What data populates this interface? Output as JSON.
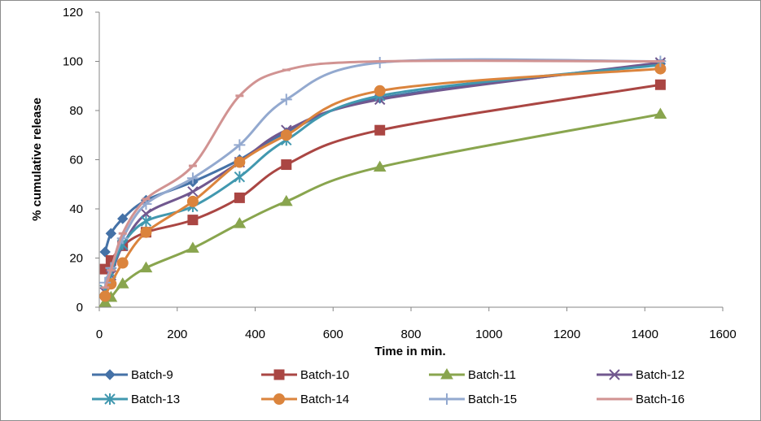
{
  "chart_data": {
    "type": "line",
    "title": "",
    "xlabel": "Time in min.",
    "ylabel": "% cumulative release",
    "xlim": [
      0,
      1600
    ],
    "ylim": [
      0,
      120
    ],
    "xticks": [
      0,
      200,
      400,
      600,
      800,
      1000,
      1200,
      1400,
      1600
    ],
    "yticks": [
      0,
      20,
      40,
      60,
      80,
      100,
      120
    ],
    "grid": false,
    "legend_position": "bottom",
    "series": [
      {
        "name": "Batch-9",
        "color": "#4572a7",
        "marker": "diamond",
        "x": [
          15,
          30,
          60,
          120,
          240,
          360,
          480,
          720,
          1440
        ],
        "y": [
          22.5,
          30,
          36,
          43.5,
          51,
          60,
          71,
          85,
          99
        ]
      },
      {
        "name": "Batch-10",
        "color": "#aa4643",
        "marker": "square",
        "x": [
          15,
          30,
          60,
          120,
          240,
          360,
          480,
          720,
          1440
        ],
        "y": [
          15.5,
          19,
          25,
          30.5,
          35.5,
          44.5,
          58,
          72,
          90.5
        ]
      },
      {
        "name": "Batch-11",
        "color": "#89a54e",
        "marker": "triangle",
        "x": [
          15,
          30,
          60,
          120,
          240,
          360,
          480,
          720,
          1440
        ],
        "y": [
          2,
          4,
          9.5,
          16,
          24,
          34,
          43,
          57,
          78.5
        ]
      },
      {
        "name": "Batch-12",
        "color": "#71588f",
        "marker": "x",
        "x": [
          15,
          30,
          60,
          120,
          240,
          360,
          480,
          720,
          1440
        ],
        "y": [
          6,
          13,
          25,
          38,
          47,
          59,
          72,
          84.5,
          99.5
        ]
      },
      {
        "name": "Batch-13",
        "color": "#4198af",
        "marker": "asterisk",
        "x": [
          15,
          30,
          60,
          120,
          240,
          360,
          480,
          720,
          1440
        ],
        "y": [
          7,
          14,
          25.5,
          35,
          41,
          53,
          68,
          86,
          98.5
        ]
      },
      {
        "name": "Batch-14",
        "color": "#db843d",
        "marker": "circle",
        "x": [
          15,
          30,
          60,
          120,
          240,
          360,
          480,
          720,
          1440
        ],
        "y": [
          4.5,
          9.5,
          18,
          30.5,
          43,
          59,
          70,
          88,
          97
        ]
      },
      {
        "name": "Batch-15",
        "color": "#93a9cf",
        "marker": "plus",
        "x": [
          15,
          30,
          60,
          120,
          240,
          360,
          480,
          720,
          1440
        ],
        "y": [
          10,
          16,
          28,
          42,
          52.5,
          66,
          84.5,
          99.5,
          100
        ]
      },
      {
        "name": "Batch-16",
        "color": "#d19392",
        "marker": "dash",
        "x": [
          15,
          30,
          60,
          120,
          240,
          360,
          480,
          720,
          1440
        ],
        "y": [
          8,
          15,
          30,
          44,
          57.5,
          86,
          96.5,
          100,
          100
        ]
      }
    ]
  }
}
